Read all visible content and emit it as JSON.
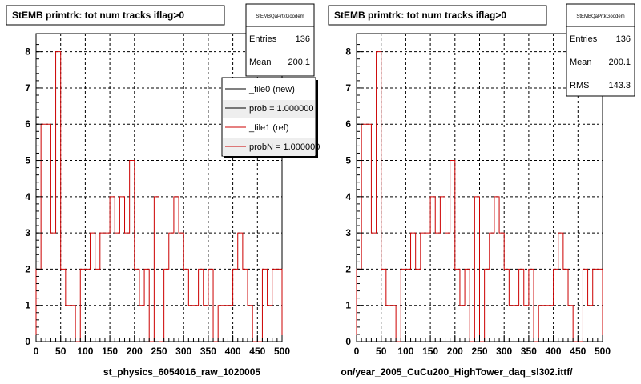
{
  "chart_data": [
    {
      "type": "histogram-step",
      "title": "StEMB primtrk: tot num tracks iflag>0",
      "xlabel": "st_physics_6054016_raw_1020005",
      "xlim": [
        0,
        500
      ],
      "ylim": [
        0,
        8.5
      ],
      "xticks": [
        "0",
        "50",
        "100",
        "150",
        "200",
        "250",
        "300",
        "350",
        "400",
        "450",
        "500"
      ],
      "yticks": [
        "0",
        "1",
        "2",
        "3",
        "4",
        "5",
        "6",
        "7",
        "8"
      ],
      "grid": true,
      "bin_width": 10,
      "values": [
        2,
        6,
        6,
        3,
        8,
        2,
        1,
        1,
        0,
        2,
        2,
        3,
        2,
        3,
        3,
        4,
        3,
        4,
        3,
        5,
        2,
        1,
        2,
        0,
        4,
        0,
        2,
        3,
        4,
        3,
        2,
        1,
        1,
        2,
        1,
        2,
        0,
        1,
        1,
        1,
        2,
        3,
        2,
        1,
        0,
        0,
        2,
        1,
        2,
        2,
        2
      ],
      "color": "#cc0000",
      "stats": {
        "name": "StEMBQaPrtkGoodem",
        "entries_label": "Entries",
        "entries": "136",
        "mean_label": "Mean",
        "mean": "200.1"
      },
      "legend": {
        "entries": [
          {
            "label": "_file0 (new)",
            "color": "#000000"
          },
          {
            "label": "prob = 1.000000",
            "color": "#000000"
          },
          {
            "label": "_file1 (ref)",
            "color": "#cc0000"
          },
          {
            "label": "probN = 1.000000",
            "color": "#cc0000"
          }
        ]
      }
    },
    {
      "type": "histogram-step",
      "title": "StEMB primtrk: tot num tracks iflag>0",
      "xlabel": "on/year_2005_CuCu200_HighTower_daq_sl302.ittf/",
      "xlim": [
        0,
        500
      ],
      "ylim": [
        0,
        8.5
      ],
      "xticks": [
        "0",
        "50",
        "100",
        "150",
        "200",
        "250",
        "300",
        "350",
        "400",
        "450",
        "500"
      ],
      "yticks": [
        "0",
        "1",
        "2",
        "3",
        "4",
        "5",
        "6",
        "7",
        "8"
      ],
      "grid": true,
      "bin_width": 10,
      "values": [
        2,
        6,
        6,
        3,
        8,
        2,
        1,
        1,
        0,
        2,
        2,
        3,
        2,
        3,
        3,
        4,
        3,
        4,
        3,
        5,
        2,
        1,
        2,
        0,
        4,
        0,
        2,
        3,
        4,
        3,
        2,
        1,
        1,
        2,
        1,
        2,
        0,
        1,
        1,
        1,
        2,
        3,
        2,
        1,
        0,
        0,
        2,
        1,
        2,
        2,
        2
      ],
      "color": "#cc0000",
      "stats": {
        "name": "StEMBQaPrtkGoodem",
        "entries_label": "Entries",
        "entries": "136",
        "mean_label": "Mean",
        "mean": "200.1",
        "rms_label": "RMS",
        "rms": "143.3"
      }
    }
  ]
}
